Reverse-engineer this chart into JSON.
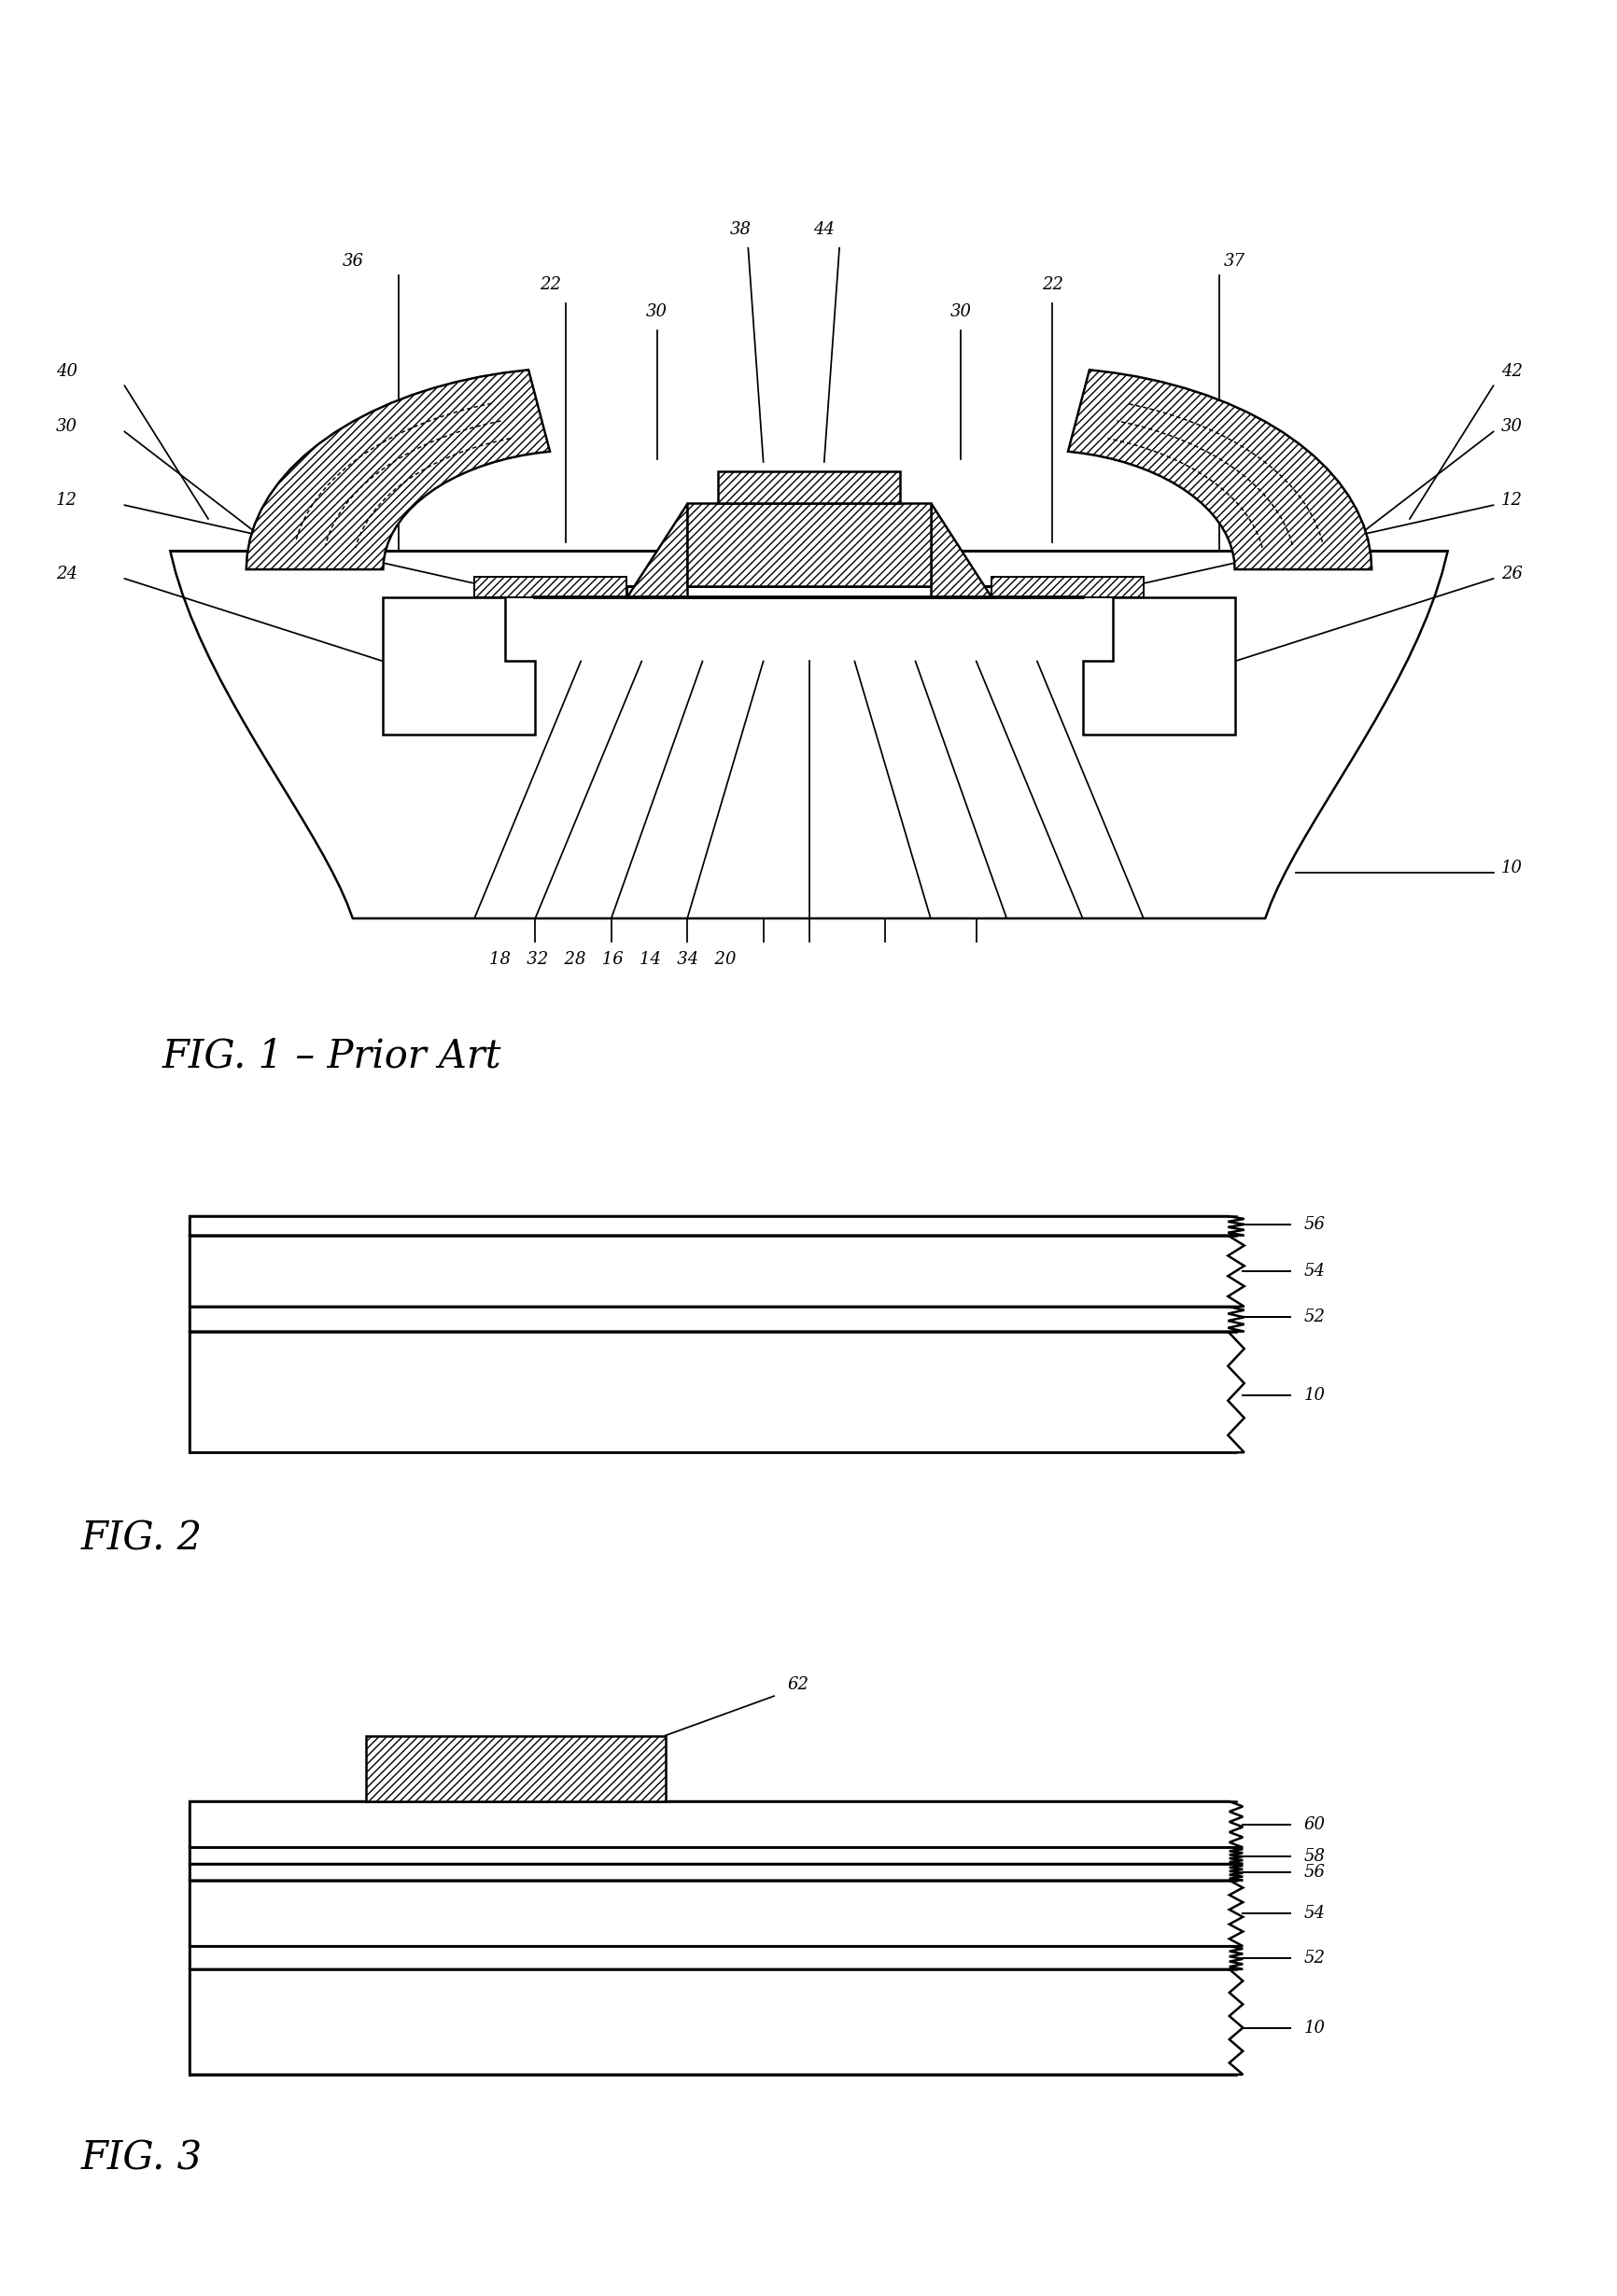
{
  "fig1_caption": "FIG.  1  -  Prior  Art",
  "fig2_caption": "FIG.  2",
  "fig3_caption": "FIG.  3",
  "lw": 1.8,
  "bg_color": "#ffffff",
  "line_color": "#000000"
}
